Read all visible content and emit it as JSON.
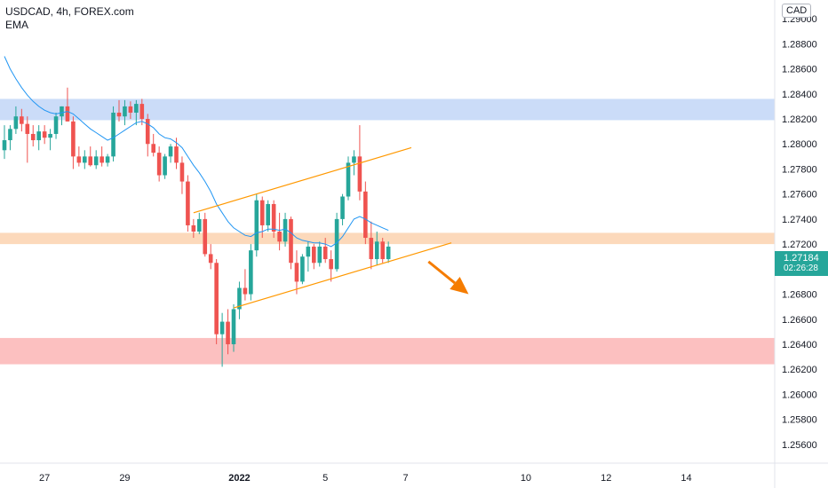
{
  "header": {
    "title": "USDCAD, 4h, FOREX.com",
    "indicator": "EMA",
    "currency": "CAD"
  },
  "last_price": {
    "value": "1.27184",
    "countdown": "02:26:28",
    "color": "#26a69a"
  },
  "colors": {
    "up": "#26a69a",
    "down": "#ef5350",
    "ema": "#2196f3",
    "channel": "#ff9800",
    "zone_resistance": "#c5d8f7",
    "zone_mid": "#fcd5b4",
    "zone_support": "#fcb9b9",
    "arrow": "#f57c00"
  },
  "chart_data": {
    "type": "candlestick",
    "symbol": "USDCAD",
    "timeframe": "4h",
    "ylim": [
      1.2545,
      1.2915
    ],
    "y_ticks": [
      "1.29000",
      "1.28800",
      "1.28600",
      "1.28400",
      "1.28200",
      "1.28000",
      "1.27800",
      "1.27600",
      "1.27400",
      "1.27200",
      "1.27000",
      "1.26800",
      "1.26600",
      "1.26400",
      "1.26200",
      "1.26000",
      "1.25800",
      "1.25600"
    ],
    "x_ticks": [
      {
        "label": "27",
        "index": 7
      },
      {
        "label": "29",
        "index": 21
      },
      {
        "label": "2022",
        "index": 41
      },
      {
        "label": "5",
        "index": 56
      },
      {
        "label": "7",
        "index": 70
      },
      {
        "label": "10",
        "index": 91
      },
      {
        "label": "12",
        "index": 105
      },
      {
        "label": "14",
        "index": 119
      }
    ],
    "candles": [
      [
        1.2795,
        1.2815,
        1.2788,
        1.2803
      ],
      [
        1.2803,
        1.2815,
        1.2795,
        1.2812
      ],
      [
        1.2812,
        1.283,
        1.2808,
        1.2822
      ],
      [
        1.2822,
        1.2828,
        1.281,
        1.2816
      ],
      [
        1.2816,
        1.2822,
        1.2785,
        1.2808
      ],
      [
        1.2808,
        1.2815,
        1.2798,
        1.2803
      ],
      [
        1.2803,
        1.2815,
        1.2795,
        1.281
      ],
      [
        1.281,
        1.2815,
        1.28,
        1.2805
      ],
      [
        1.2805,
        1.2812,
        1.2795,
        1.2808
      ],
      [
        1.2808,
        1.2825,
        1.2804,
        1.2822
      ],
      [
        1.2822,
        1.283,
        1.2815,
        1.283
      ],
      [
        1.283,
        1.2845,
        1.2818,
        1.2818
      ],
      [
        1.2818,
        1.2822,
        1.278,
        1.279
      ],
      [
        1.279,
        1.2798,
        1.2782,
        1.2785
      ],
      [
        1.2785,
        1.2795,
        1.278,
        1.279
      ],
      [
        1.279,
        1.2798,
        1.2782,
        1.2783
      ],
      [
        1.2783,
        1.2795,
        1.278,
        1.279
      ],
      [
        1.279,
        1.2798,
        1.2782,
        1.2785
      ],
      [
        1.2785,
        1.2792,
        1.2782,
        1.279
      ],
      [
        1.279,
        1.283,
        1.2786,
        1.2825
      ],
      [
        1.2825,
        1.2835,
        1.2818,
        1.2822
      ],
      [
        1.2822,
        1.2835,
        1.2815,
        1.283
      ],
      [
        1.283,
        1.2834,
        1.282,
        1.2825
      ],
      [
        1.2825,
        1.2835,
        1.2815,
        1.2832
      ],
      [
        1.2832,
        1.2836,
        1.2815,
        1.282
      ],
      [
        1.282,
        1.2824,
        1.279,
        1.28
      ],
      [
        1.28,
        1.2808,
        1.279,
        1.2793
      ],
      [
        1.2793,
        1.2798,
        1.277,
        1.2775
      ],
      [
        1.2775,
        1.2792,
        1.2772,
        1.279
      ],
      [
        1.279,
        1.28,
        1.2785,
        1.2798
      ],
      [
        1.2798,
        1.2805,
        1.278,
        1.2785
      ],
      [
        1.2785,
        1.279,
        1.276,
        1.277
      ],
      [
        1.277,
        1.2775,
        1.273,
        1.2735
      ],
      [
        1.2735,
        1.274,
        1.2725,
        1.273
      ],
      [
        1.273,
        1.2745,
        1.2728,
        1.274
      ],
      [
        1.274,
        1.2745,
        1.271,
        1.2712
      ],
      [
        1.2712,
        1.272,
        1.27,
        1.2705
      ],
      [
        1.2705,
        1.2708,
        1.264,
        1.2648
      ],
      [
        1.2648,
        1.2665,
        1.2622,
        1.2658
      ],
      [
        1.2658,
        1.2668,
        1.2632,
        1.264
      ],
      [
        1.264,
        1.2672,
        1.2634,
        1.2668
      ],
      [
        1.2668,
        1.269,
        1.266,
        1.2685
      ],
      [
        1.2685,
        1.27,
        1.2675,
        1.268
      ],
      [
        1.268,
        1.272,
        1.2675,
        1.2715
      ],
      [
        1.2715,
        1.276,
        1.271,
        1.2755
      ],
      [
        1.2755,
        1.2758,
        1.2725,
        1.2735
      ],
      [
        1.2735,
        1.2755,
        1.273,
        1.2752
      ],
      [
        1.2752,
        1.2755,
        1.2725,
        1.273
      ],
      [
        1.273,
        1.2745,
        1.2715,
        1.2722
      ],
      [
        1.2722,
        1.2745,
        1.2718,
        1.274
      ],
      [
        1.274,
        1.2742,
        1.27,
        1.2705
      ],
      [
        1.2705,
        1.2715,
        1.268,
        1.269
      ],
      [
        1.269,
        1.2712,
        1.2688,
        1.271
      ],
      [
        1.271,
        1.2722,
        1.2698,
        1.2718
      ],
      [
        1.2718,
        1.272,
        1.27,
        1.2705
      ],
      [
        1.2705,
        1.2722,
        1.2702,
        1.2718
      ],
      [
        1.2718,
        1.2725,
        1.2705,
        1.2708
      ],
      [
        1.2708,
        1.2715,
        1.269,
        1.27
      ],
      [
        1.27,
        1.2745,
        1.2698,
        1.274
      ],
      [
        1.274,
        1.276,
        1.2735,
        1.2758
      ],
      [
        1.2758,
        1.279,
        1.2755,
        1.2785
      ],
      [
        1.2785,
        1.2795,
        1.2775,
        1.279
      ],
      [
        1.279,
        1.2815,
        1.2755,
        1.2762
      ],
      [
        1.2762,
        1.277,
        1.272,
        1.2725
      ],
      [
        1.2725,
        1.2738,
        1.27,
        1.2708
      ],
      [
        1.2708,
        1.273,
        1.2703,
        1.2722
      ],
      [
        1.2722,
        1.2725,
        1.2705,
        1.2708
      ],
      [
        1.2708,
        1.2722,
        1.2705,
        1.2718
      ]
    ],
    "ema": [
      1.287,
      1.286,
      1.2852,
      1.2845,
      1.2839,
      1.2834,
      1.283,
      1.2827,
      1.2825,
      1.2824,
      1.2825,
      1.2826,
      1.2824,
      1.282,
      1.2816,
      1.2812,
      1.2809,
      1.2806,
      1.2803,
      1.2805,
      1.2808,
      1.2811,
      1.2814,
      1.2817,
      1.2818,
      1.2816,
      1.2813,
      1.2808,
      1.2805,
      1.2804,
      1.2801,
      1.2797,
      1.279,
      1.2783,
      1.2777,
      1.277,
      1.2762,
      1.2752,
      1.2745,
      1.2738,
      1.2733,
      1.273,
      1.2727,
      1.2726,
      1.2729,
      1.273,
      1.2732,
      1.2732,
      1.2731,
      1.2732,
      1.2729,
      1.2725,
      1.2723,
      1.2722,
      1.2721,
      1.2721,
      1.272,
      1.2718,
      1.2721,
      1.2726,
      1.2733,
      1.274,
      1.2742,
      1.274,
      1.2737,
      1.2735,
      1.2733,
      1.2731
    ],
    "zones": [
      {
        "from": 1.2819,
        "to": 1.2836
      },
      {
        "from": 1.272,
        "to": 1.2729
      },
      {
        "from": 1.2624,
        "to": 1.2645
      }
    ],
    "channel_lines": [
      {
        "x1": 33,
        "y1": 1.2745,
        "x2": 71,
        "y2": 1.2797
      },
      {
        "x1": 40,
        "y1": 1.2669,
        "x2": 78,
        "y2": 1.2721
      }
    ],
    "arrow": {
      "x1": 74,
      "y1": 1.2706,
      "x2": 81,
      "y2": 1.268
    }
  }
}
